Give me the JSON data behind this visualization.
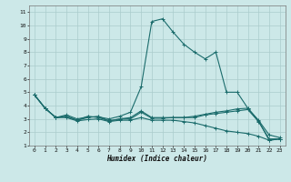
{
  "xlabel": "Humidex (Indice chaleur)",
  "bg_color": "#cce8e8",
  "grid_color": "#aacccc",
  "line_color": "#1a6b6b",
  "xlim": [
    -0.5,
    23.5
  ],
  "ylim": [
    1,
    11.5
  ],
  "xticks": [
    0,
    1,
    2,
    3,
    4,
    5,
    6,
    7,
    8,
    9,
    10,
    11,
    12,
    13,
    14,
    15,
    16,
    17,
    18,
    19,
    20,
    21,
    22,
    23
  ],
  "yticks": [
    1,
    2,
    3,
    4,
    5,
    6,
    7,
    8,
    9,
    10,
    11
  ],
  "series": {
    "line1": [
      4.8,
      3.8,
      3.1,
      3.2,
      2.9,
      3.2,
      3.1,
      2.85,
      3.0,
      3.0,
      3.5,
      3.05,
      3.05,
      3.1,
      3.1,
      3.2,
      3.35,
      3.5,
      3.6,
      3.75,
      3.8,
      2.85,
      1.4,
      1.5
    ],
    "line2": [
      4.8,
      3.8,
      3.1,
      3.3,
      3.0,
      3.15,
      3.15,
      3.0,
      3.2,
      3.5,
      5.4,
      10.3,
      10.5,
      9.5,
      8.6,
      8.0,
      7.5,
      8.0,
      5.0,
      5.0,
      3.8,
      2.9,
      1.8,
      1.6
    ],
    "line3": [
      4.8,
      3.8,
      3.1,
      3.2,
      2.9,
      3.1,
      3.2,
      2.85,
      3.0,
      3.1,
      3.6,
      3.1,
      3.1,
      3.1,
      3.1,
      3.1,
      3.3,
      3.4,
      3.5,
      3.6,
      3.7,
      2.8,
      1.5,
      1.5
    ],
    "line4": [
      4.8,
      3.8,
      3.1,
      3.1,
      2.85,
      2.95,
      3.0,
      2.8,
      2.9,
      2.9,
      3.1,
      2.9,
      2.9,
      2.9,
      2.8,
      2.7,
      2.5,
      2.3,
      2.1,
      2.0,
      1.9,
      1.7,
      1.4,
      1.5
    ]
  }
}
